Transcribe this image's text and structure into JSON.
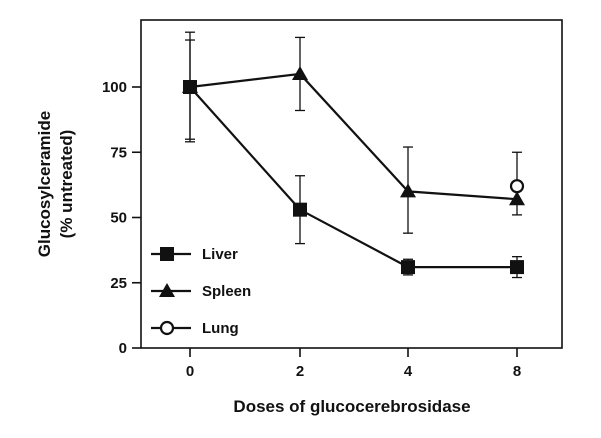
{
  "chart_data": {
    "type": "line",
    "xlabel": "Doses of glucocerebrosidase",
    "ylabel_lines": [
      "Glucosylceramide",
      "(% untreated)"
    ],
    "x": [
      "0",
      "2",
      "4",
      "8"
    ],
    "yticks": [
      "0",
      "25",
      "50",
      "75",
      "100"
    ],
    "ylim": [
      0,
      125
    ],
    "grid": false,
    "legend_position": "bottom-left",
    "series": [
      {
        "name": "Liver",
        "marker": "square",
        "values": [
          100,
          53,
          31,
          31
        ],
        "err_upper": [
          121,
          66,
          34,
          35
        ],
        "err_lower": [
          79,
          40,
          28,
          27
        ]
      },
      {
        "name": "Spleen",
        "marker": "triangle",
        "values": [
          100,
          105,
          60,
          57
        ],
        "err_upper": [
          118,
          119,
          77,
          75
        ],
        "err_lower": [
          80,
          91,
          44,
          51
        ]
      },
      {
        "name": "Lung",
        "marker": "open-circle",
        "values": [
          null,
          null,
          null,
          62
        ],
        "err_upper": [
          null,
          null,
          null,
          null
        ],
        "err_lower": [
          null,
          null,
          null,
          null
        ]
      }
    ],
    "colors": {
      "ink": "#111111",
      "background": "#ffffff"
    }
  }
}
